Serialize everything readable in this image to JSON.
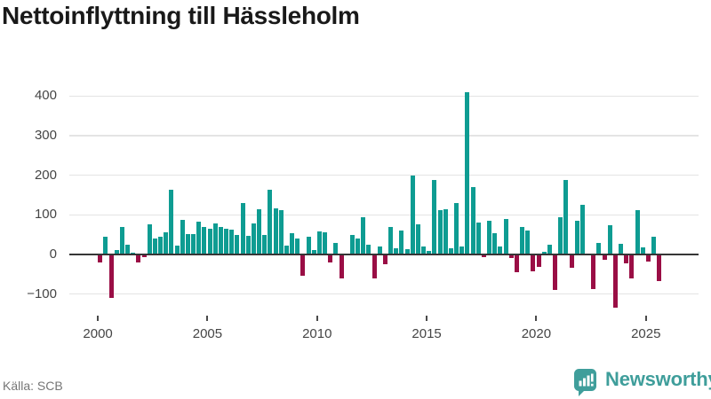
{
  "title": "Nettoinflyttning till Hässleholm",
  "source": "Källa: SCB",
  "logo": {
    "text": "Newsworthy",
    "icon": "newsworthy-speech-bubble-bar-chart",
    "color": "#3f9e9b"
  },
  "chart_data": {
    "type": "bar",
    "title": "Nettoinflyttning till Hässleholm",
    "xlabel": "",
    "ylabel": "",
    "x_start": "2000 Q1",
    "x_end": "2025 Q3",
    "frequency": "quarterly",
    "values": [
      -20,
      45,
      -110,
      12,
      70,
      25,
      5,
      -20,
      -6,
      77,
      40,
      44,
      57,
      163,
      23,
      87,
      51,
      51,
      83,
      70,
      65,
      78,
      69,
      66,
      63,
      49,
      130,
      46,
      78,
      115,
      50,
      163,
      117,
      111,
      22,
      53,
      40,
      -53,
      45,
      11,
      59,
      57,
      -20,
      28,
      -60,
      0,
      50,
      40,
      95,
      25,
      -60,
      20,
      -25,
      69,
      16,
      60,
      13,
      200,
      75,
      21,
      8,
      187,
      112,
      114,
      16,
      130,
      20,
      410,
      170,
      80,
      -6,
      86,
      54,
      20,
      90,
      -10,
      -44,
      69,
      60,
      -42,
      -31,
      7,
      24,
      -90,
      94,
      188,
      -34,
      85,
      125,
      0,
      -87,
      29,
      -13,
      74,
      -135,
      27,
      -23,
      -60,
      113,
      19,
      -18,
      44,
      -68
    ],
    "y_ticks": [
      400,
      300,
      200,
      100,
      0,
      -100
    ],
    "x_ticks": [
      2000,
      2005,
      2010,
      2015,
      2020,
      2025
    ],
    "ylim": [
      -150,
      430
    ],
    "grid": true,
    "legend": false,
    "colors": {
      "positive": "#0e9c92",
      "negative": "#9a0e45",
      "gridline": "#e4e4e4",
      "zero_line": "#363636"
    }
  }
}
